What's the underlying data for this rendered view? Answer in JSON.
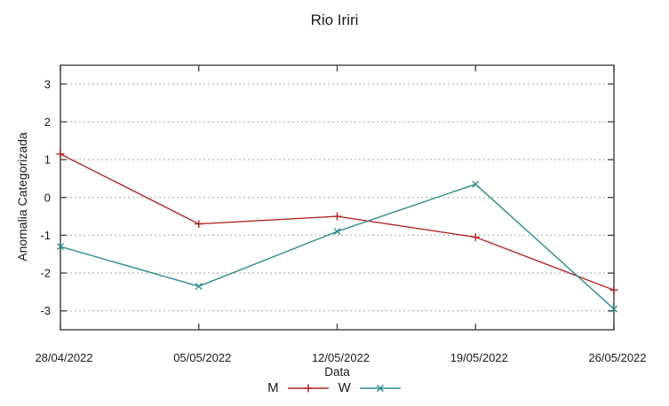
{
  "page": {
    "background": "#ffffff"
  },
  "chart_data": {
    "type": "line",
    "title": "Rio Iriri",
    "xlabel": "Data",
    "ylabel": "Anomalia Categorizada",
    "categories": [
      "28/04/2022",
      "05/05/2022",
      "12/05/2022",
      "19/05/2022",
      "26/05/2022"
    ],
    "series": [
      {
        "name": "M",
        "marker": "plus",
        "color": "#b02727",
        "values": [
          1.15,
          -0.7,
          -0.5,
          -1.05,
          -2.45
        ]
      },
      {
        "name": "W",
        "marker": "cross",
        "color": "#2e8b8b",
        "values": [
          -1.3,
          -2.35,
          -0.9,
          0.35,
          -2.95
        ]
      }
    ],
    "ylim": [
      -3.5,
      3.5
    ],
    "yticks": [
      -3,
      -2,
      -1,
      0,
      1,
      2,
      3
    ],
    "grid": "horizontal-dotted",
    "legend_position": "bottom-center",
    "colors": {
      "border": "#4a4a4a",
      "grid": "#b5b5b5",
      "text": "#1a1a1a",
      "background": "#ffffff"
    }
  }
}
